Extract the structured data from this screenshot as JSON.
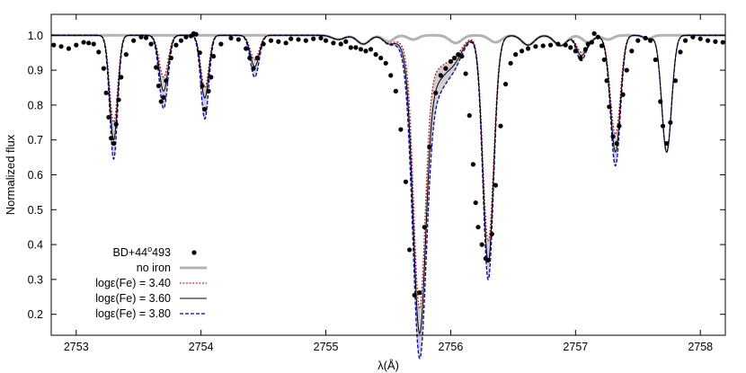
{
  "chart_data": {
    "type": "line",
    "xlabel": "λ(Å)",
    "ylabel": "Normalized flux",
    "xlim": [
      2752.8,
      2758.2
    ],
    "ylim": [
      0.14,
      1.06
    ],
    "xticks": [
      2753,
      2754,
      2755,
      2756,
      2757,
      2758
    ],
    "yticks": [
      0.2,
      0.3,
      0.4,
      0.5,
      0.6,
      0.7,
      0.8,
      0.9,
      1.0
    ],
    "grid": false,
    "legend_position": "bottom-left",
    "legend": [
      {
        "key": "observed",
        "label": "BD+44°493",
        "label_main": "BD+44",
        "label_sup": "o",
        "label_tail": "493"
      },
      {
        "key": "noiron",
        "label": "no iron"
      },
      {
        "key": "fe340",
        "label": "logε(Fe) = 3.40"
      },
      {
        "key": "fe360",
        "label": "logε(Fe) = 3.60"
      },
      {
        "key": "fe380",
        "label": "logε(Fe) = 3.80"
      }
    ],
    "series": [
      {
        "key": "observed",
        "name": "BD+44°493",
        "style": "points",
        "color": "#000000",
        "points": [
          [
            2752.82,
            0.972
          ],
          [
            2752.88,
            0.968
          ],
          [
            2752.94,
            0.962
          ],
          [
            2753.0,
            0.972
          ],
          [
            2753.06,
            0.98
          ],
          [
            2753.1,
            0.978
          ],
          [
            2753.14,
            0.975
          ],
          [
            2753.18,
            0.952
          ],
          [
            2753.22,
            0.905
          ],
          [
            2753.24,
            0.835
          ],
          [
            2753.26,
            0.765
          ],
          [
            2753.28,
            0.705
          ],
          [
            2753.3,
            0.69
          ],
          [
            2753.32,
            0.745
          ],
          [
            2753.34,
            0.815
          ],
          [
            2753.36,
            0.88
          ],
          [
            2753.4,
            0.945
          ],
          [
            2753.46,
            0.985
          ],
          [
            2753.52,
            0.995
          ],
          [
            2753.56,
            0.993
          ],
          [
            2753.6,
            0.975
          ],
          [
            2753.64,
            0.908
          ],
          [
            2753.66,
            0.855
          ],
          [
            2753.68,
            0.81
          ],
          [
            2753.7,
            0.822
          ],
          [
            2753.72,
            0.87
          ],
          [
            2753.76,
            0.935
          ],
          [
            2753.8,
            0.972
          ],
          [
            2753.84,
            0.985
          ],
          [
            2753.88,
            0.995
          ],
          [
            2753.92,
            0.998
          ],
          [
            2753.94,
            1.005
          ],
          [
            2753.96,
            1.003
          ],
          [
            2753.99,
            0.95
          ],
          [
            2754.01,
            0.855
          ],
          [
            2754.03,
            0.788
          ],
          [
            2754.06,
            0.84
          ],
          [
            2754.08,
            0.88
          ],
          [
            2754.1,
            0.94
          ],
          [
            2754.16,
            0.975
          ],
          [
            2754.24,
            0.992
          ],
          [
            2754.3,
            0.988
          ],
          [
            2754.36,
            0.962
          ],
          [
            2754.39,
            0.935
          ],
          [
            2754.42,
            0.905
          ],
          [
            2754.45,
            0.935
          ],
          [
            2754.5,
            0.975
          ],
          [
            2754.56,
            0.985
          ],
          [
            2754.62,
            0.982
          ],
          [
            2754.68,
            0.978
          ],
          [
            2754.72,
            0.99
          ],
          [
            2754.78,
            0.988
          ],
          [
            2754.84,
            0.985
          ],
          [
            2754.9,
            0.99
          ],
          [
            2754.96,
            0.992
          ],
          [
            2755.0,
            0.985
          ],
          [
            2755.06,
            0.978
          ],
          [
            2755.12,
            0.975
          ],
          [
            2755.16,
            0.982
          ],
          [
            2755.2,
            0.965
          ],
          [
            2755.24,
            0.965
          ],
          [
            2755.28,
            0.96
          ],
          [
            2755.32,
            0.955
          ],
          [
            2755.36,
            0.96
          ],
          [
            2755.4,
            0.945
          ],
          [
            2755.44,
            0.935
          ],
          [
            2755.48,
            0.92
          ],
          [
            2755.52,
            0.885
          ],
          [
            2755.56,
            0.84
          ],
          [
            2755.6,
            0.73
          ],
          [
            2755.64,
            0.58
          ],
          [
            2755.67,
            0.385
          ],
          [
            2755.71,
            0.255
          ],
          [
            2755.75,
            0.262
          ],
          [
            2755.79,
            0.45
          ],
          [
            2755.83,
            0.68
          ],
          [
            2755.88,
            0.835
          ],
          [
            2755.92,
            0.885
          ],
          [
            2755.96,
            0.905
          ],
          [
            2756.0,
            0.925
          ],
          [
            2756.03,
            0.935
          ],
          [
            2756.06,
            0.945
          ],
          [
            2756.09,
            0.94
          ],
          [
            2756.12,
            0.89
          ],
          [
            2756.15,
            0.77
          ],
          [
            2756.18,
            0.63
          ],
          [
            2756.2,
            0.52
          ],
          [
            2756.22,
            0.45
          ],
          [
            2756.25,
            0.4
          ],
          [
            2756.28,
            0.36
          ],
          [
            2756.3,
            0.355
          ],
          [
            2756.33,
            0.43
          ],
          [
            2756.36,
            0.57
          ],
          [
            2756.4,
            0.74
          ],
          [
            2756.44,
            0.86
          ],
          [
            2756.48,
            0.92
          ],
          [
            2756.52,
            0.945
          ],
          [
            2756.57,
            0.955
          ],
          [
            2756.62,
            0.962
          ],
          [
            2756.68,
            0.968
          ],
          [
            2756.74,
            0.97
          ],
          [
            2756.8,
            0.972
          ],
          [
            2756.86,
            0.975
          ],
          [
            2756.92,
            0.972
          ],
          [
            2756.96,
            0.965
          ],
          [
            2757.0,
            0.955
          ],
          [
            2757.04,
            0.935
          ],
          [
            2757.08,
            0.96
          ],
          [
            2757.1,
            0.975
          ],
          [
            2757.13,
            0.98
          ],
          [
            2757.15,
            1.005
          ],
          [
            2757.18,
            0.995
          ],
          [
            2757.21,
            0.97
          ],
          [
            2757.23,
            0.93
          ],
          [
            2757.25,
            0.87
          ],
          [
            2757.27,
            0.795
          ],
          [
            2757.3,
            0.71
          ],
          [
            2757.33,
            0.69
          ],
          [
            2757.35,
            0.74
          ],
          [
            2757.38,
            0.83
          ],
          [
            2757.41,
            0.9
          ],
          [
            2757.45,
            0.955
          ],
          [
            2757.5,
            0.985
          ],
          [
            2757.56,
            0.992
          ],
          [
            2757.6,
            0.985
          ],
          [
            2757.64,
            0.93
          ],
          [
            2757.68,
            0.81
          ],
          [
            2757.7,
            0.74
          ],
          [
            2757.73,
            0.69
          ],
          [
            2757.76,
            0.75
          ],
          [
            2757.8,
            0.87
          ],
          [
            2757.84,
            0.952
          ],
          [
            2757.88,
            0.985
          ],
          [
            2757.94,
            0.995
          ],
          [
            2758.0,
            0.99
          ],
          [
            2758.06,
            0.985
          ],
          [
            2758.12,
            0.982
          ],
          [
            2758.18,
            0.98
          ]
        ]
      },
      {
        "key": "noiron",
        "name": "no iron",
        "style": "solid",
        "color": "#b3b3b3",
        "continuum": 1.0,
        "lines": [
          [
            2755.1,
            0.012,
            0.07
          ],
          [
            2755.3,
            0.025,
            0.07
          ],
          [
            2755.5,
            0.018,
            0.06
          ],
          [
            2755.7,
            0.012,
            0.06
          ],
          [
            2756.04,
            0.022,
            0.07
          ],
          [
            2756.36,
            0.02,
            0.07
          ],
          [
            2756.62,
            0.028,
            0.07
          ],
          [
            2756.88,
            0.03,
            0.07
          ],
          [
            2757.1,
            0.02,
            0.06
          ],
          [
            2757.26,
            0.012,
            0.06
          ],
          [
            2757.58,
            0.01,
            0.05
          ]
        ]
      },
      {
        "key": "fe340",
        "name": "logε(Fe) = 3.40",
        "style": "dotted",
        "color": "#cc0000",
        "continuum": 1.0,
        "lines": [
          [
            2753.3,
            0.25,
            0.045
          ],
          [
            2753.7,
            0.12,
            0.05
          ],
          [
            2754.03,
            0.15,
            0.045
          ],
          [
            2754.43,
            0.07,
            0.05
          ],
          [
            2755.1,
            0.012,
            0.07
          ],
          [
            2755.3,
            0.025,
            0.07
          ],
          [
            2755.5,
            0.018,
            0.06
          ],
          [
            2755.7,
            0.012,
            0.06
          ],
          [
            2755.75,
            0.7,
            0.065
          ],
          [
            2755.85,
            0.1,
            0.2
          ],
          [
            2756.04,
            0.022,
            0.07
          ],
          [
            2756.3,
            0.58,
            0.06
          ],
          [
            2756.36,
            0.02,
            0.07
          ],
          [
            2756.62,
            0.028,
            0.07
          ],
          [
            2756.88,
            0.03,
            0.07
          ],
          [
            2757.04,
            0.04,
            0.05
          ],
          [
            2757.1,
            0.02,
            0.06
          ],
          [
            2757.26,
            0.012,
            0.06
          ],
          [
            2757.32,
            0.28,
            0.055
          ],
          [
            2757.58,
            0.01,
            0.05
          ],
          [
            2757.73,
            0.335,
            0.055
          ]
        ]
      },
      {
        "key": "fe360",
        "name": "logε(Fe) = 3.60",
        "style": "solid",
        "color": "#000000",
        "continuum": 1.0,
        "lines": [
          [
            2753.3,
            0.3,
            0.045
          ],
          [
            2753.7,
            0.16,
            0.05
          ],
          [
            2754.03,
            0.18,
            0.045
          ],
          [
            2754.43,
            0.09,
            0.05
          ],
          [
            2755.1,
            0.012,
            0.07
          ],
          [
            2755.3,
            0.025,
            0.07
          ],
          [
            2755.5,
            0.018,
            0.06
          ],
          [
            2755.7,
            0.012,
            0.06
          ],
          [
            2755.75,
            0.74,
            0.07
          ],
          [
            2755.85,
            0.14,
            0.2
          ],
          [
            2756.04,
            0.022,
            0.07
          ],
          [
            2756.3,
            0.64,
            0.06
          ],
          [
            2756.36,
            0.02,
            0.07
          ],
          [
            2756.62,
            0.028,
            0.07
          ],
          [
            2756.88,
            0.03,
            0.07
          ],
          [
            2757.04,
            0.05,
            0.05
          ],
          [
            2757.1,
            0.02,
            0.06
          ],
          [
            2757.26,
            0.012,
            0.06
          ],
          [
            2757.32,
            0.33,
            0.055
          ],
          [
            2757.58,
            0.01,
            0.05
          ],
          [
            2757.73,
            0.335,
            0.055
          ]
        ]
      },
      {
        "key": "fe380",
        "name": "logε(Fe) = 3.80",
        "style": "dashed",
        "color": "#0000cc",
        "continuum": 1.0,
        "lines": [
          [
            2753.3,
            0.355,
            0.045
          ],
          [
            2753.7,
            0.21,
            0.05
          ],
          [
            2754.03,
            0.24,
            0.045
          ],
          [
            2754.43,
            0.12,
            0.05
          ],
          [
            2755.1,
            0.012,
            0.07
          ],
          [
            2755.3,
            0.025,
            0.07
          ],
          [
            2755.5,
            0.018,
            0.06
          ],
          [
            2755.7,
            0.012,
            0.06
          ],
          [
            2755.75,
            0.78,
            0.075
          ],
          [
            2755.85,
            0.18,
            0.2
          ],
          [
            2756.04,
            0.022,
            0.07
          ],
          [
            2756.3,
            0.69,
            0.06
          ],
          [
            2756.36,
            0.02,
            0.07
          ],
          [
            2756.62,
            0.028,
            0.07
          ],
          [
            2756.88,
            0.03,
            0.07
          ],
          [
            2757.04,
            0.065,
            0.05
          ],
          [
            2757.1,
            0.02,
            0.06
          ],
          [
            2757.26,
            0.012,
            0.06
          ],
          [
            2757.32,
            0.37,
            0.055
          ],
          [
            2757.58,
            0.01,
            0.05
          ],
          [
            2757.73,
            0.335,
            0.055
          ]
        ]
      }
    ],
    "shaded_band": {
      "between": [
        "fe340",
        "fe380"
      ],
      "color": "#d0d0d0"
    }
  }
}
